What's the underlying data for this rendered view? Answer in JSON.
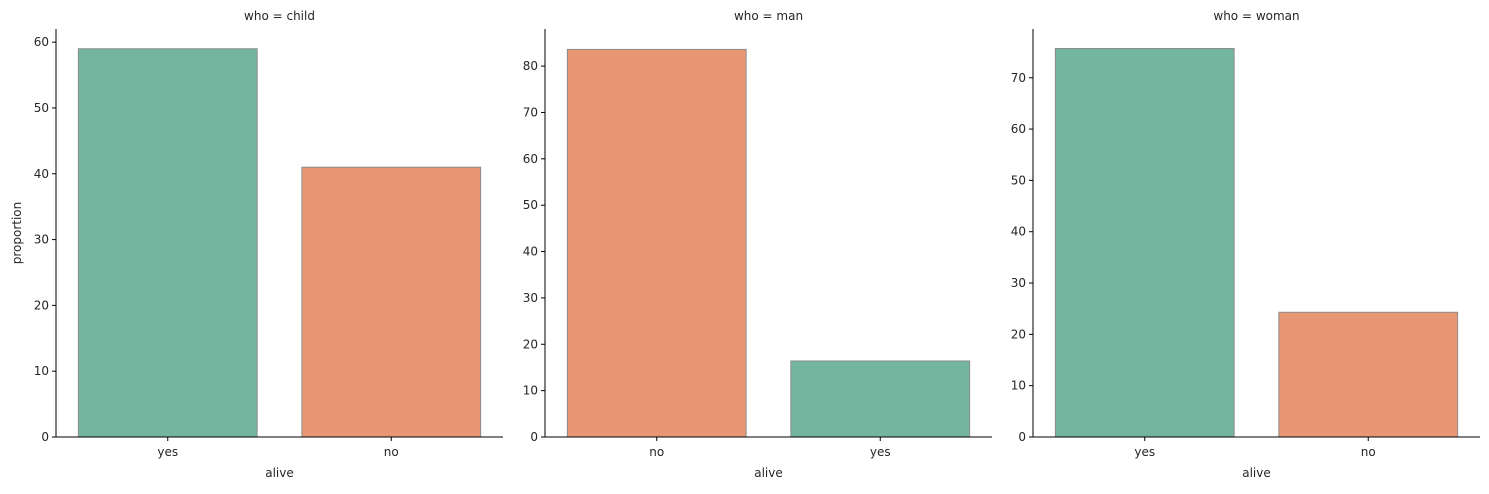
{
  "colors": {
    "yes": "#74b5a0",
    "no": "#e89774",
    "bar_edge": "#8c8c8c",
    "axis": "#000000",
    "text": "#262626"
  },
  "chart_data": [
    {
      "type": "bar",
      "title": "who = child",
      "xlabel": "alive",
      "ylabel": "proportion",
      "categories": [
        "yes",
        "no"
      ],
      "values": [
        59.0,
        41.0
      ],
      "ylim": [
        0,
        62
      ],
      "yticks": [
        0,
        10,
        20,
        30,
        40,
        50,
        60
      ],
      "grid": false,
      "legend": "none"
    },
    {
      "type": "bar",
      "title": "who = man",
      "xlabel": "alive",
      "ylabel": "",
      "categories": [
        "no",
        "yes"
      ],
      "values": [
        83.6,
        16.4
      ],
      "ylim": [
        0,
        88
      ],
      "yticks": [
        0,
        10,
        20,
        30,
        40,
        50,
        60,
        70,
        80
      ],
      "grid": false,
      "legend": "none"
    },
    {
      "type": "bar",
      "title": "who = woman",
      "xlabel": "alive",
      "ylabel": "",
      "categories": [
        "yes",
        "no"
      ],
      "values": [
        75.7,
        24.3
      ],
      "ylim": [
        0,
        79.5
      ],
      "yticks": [
        0,
        10,
        20,
        30,
        40,
        50,
        60,
        70
      ],
      "grid": false,
      "legend": "none"
    }
  ]
}
